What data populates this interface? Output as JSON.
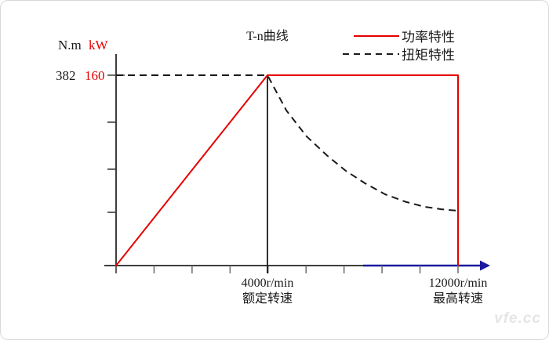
{
  "page": {
    "watermark": "vfe.cc"
  },
  "chart_data": {
    "type": "line",
    "title": "T-n曲线",
    "legend_position": "top-right",
    "grid": false,
    "colors": {
      "power_red": "#e60000",
      "torque_black": "#1a1a1a",
      "x_axis_arrow": "#1a1a9e",
      "axis": "#3d3d3d"
    },
    "y_axis_units": [
      {
        "label": "N.m",
        "color": "#1a1a1a"
      },
      {
        "label": "kW",
        "color": "#e60000"
      }
    ],
    "key_values": {
      "torque_Nm": 382,
      "power_kW": 160
    },
    "x_ticks_labeled": [
      {
        "value": 4000,
        "label": "4000r/min",
        "name": "额定转速"
      },
      {
        "value": 12000,
        "label": "12000r/min",
        "name": "最高转速"
      }
    ],
    "x_range_rpm": [
      0,
      12000
    ],
    "y_left_range_Nm": [
      0,
      382
    ],
    "y_right_range_kW": [
      0,
      160
    ],
    "legend": [
      {
        "name": "功率特性",
        "style": "solid",
        "color": "#e60000"
      },
      {
        "name": "扭矩特性",
        "style": "dashed",
        "color": "#1a1a1a"
      }
    ],
    "series": [
      {
        "name": "功率特性",
        "axis": "kW",
        "style": "solid",
        "color": "#e60000",
        "x": [
          0,
          4000,
          12000,
          12000
        ],
        "y": [
          0,
          160,
          160,
          0
        ]
      },
      {
        "name": "扭矩特性",
        "axis": "N.m",
        "style": "dashed",
        "color": "#1a1a1a",
        "x": [
          0,
          4000,
          4800,
          5646,
          6500,
          7292,
          8100,
          8938,
          9800,
          10584,
          11300,
          12000
        ],
        "y": [
          382,
          382,
          311,
          259,
          221,
          190,
          165,
          143,
          128,
          118,
          113,
          110
        ]
      }
    ]
  }
}
